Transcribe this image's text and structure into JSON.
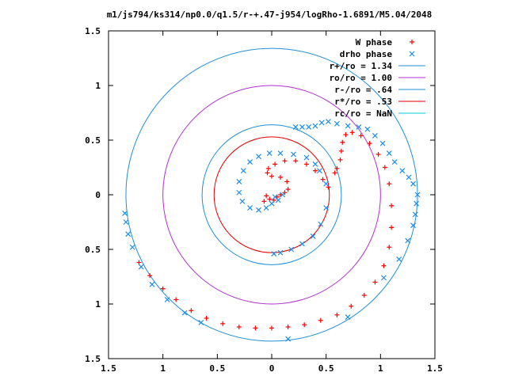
{
  "chart_data": {
    "type": "scatter",
    "title": "m1/js794/ks314/np0.0/q1.5/r-+.47-j954/logRho-1.6891/M5.04/2048",
    "xlim": [
      -1.5,
      1.5
    ],
    "ylim": [
      -1.5,
      1.5
    ],
    "x_ticks": [
      -1.5,
      -1,
      -0.5,
      0,
      0.5,
      1,
      1.5
    ],
    "x_tick_labels": [
      "1.5",
      "1",
      "0.5",
      "0",
      "0.5",
      "1",
      "1.5"
    ],
    "y_ticks": [
      1.5,
      1,
      0.5,
      0,
      -0.5,
      -1,
      -1.5
    ],
    "y_tick_labels": [
      "1.5",
      "1",
      "0.5",
      "0",
      "0.5",
      "1",
      "1.5"
    ],
    "grid": false,
    "legend_position": "top-right",
    "colors": {
      "w_phase": "#ff0000",
      "drho_phase": "#1e8ee6",
      "r_plus": "#1f8fd6",
      "ro": "#b030d0",
      "r_minus": "#1f8fd6",
      "r_star": "#e00000",
      "rc": "#00c8d8"
    },
    "circles": [
      {
        "label": "r+/ro = 1.34",
        "radius": 1.34,
        "color_key": "r_plus"
      },
      {
        "label": "ro/ro = 1.00",
        "radius": 1.0,
        "color_key": "ro"
      },
      {
        "label": "r-/ro = .64",
        "radius": 0.64,
        "color_key": "r_minus"
      },
      {
        "label": "r*/ro = .53",
        "radius": 0.53,
        "color_key": "r_star"
      },
      {
        "label": "rc/ro = NaN",
        "radius": null,
        "color_key": "rc"
      }
    ],
    "series": [
      {
        "name": "W phase",
        "marker": "plus",
        "color_key": "w_phase",
        "points": [
          [
            -1.22,
            -0.62
          ],
          [
            -1.12,
            -0.74
          ],
          [
            -1.0,
            -0.86
          ],
          [
            -0.88,
            -0.96
          ],
          [
            -0.74,
            -1.06
          ],
          [
            -0.6,
            -1.13
          ],
          [
            -0.45,
            -1.18
          ],
          [
            -0.3,
            -1.21
          ],
          [
            -0.15,
            -1.22
          ],
          [
            0.0,
            -1.22
          ],
          [
            0.15,
            -1.21
          ],
          [
            0.3,
            -1.19
          ],
          [
            0.45,
            -1.15
          ],
          [
            0.6,
            -1.1
          ],
          [
            0.73,
            -1.02
          ],
          [
            0.85,
            -0.92
          ],
          [
            0.95,
            -0.8
          ],
          [
            1.03,
            -0.65
          ],
          [
            1.08,
            -0.48
          ],
          [
            1.1,
            -0.3
          ],
          [
            1.1,
            -0.1
          ],
          [
            1.08,
            0.1
          ],
          [
            1.04,
            0.25
          ],
          [
            0.98,
            0.37
          ],
          [
            0.9,
            0.47
          ],
          [
            0.82,
            0.54
          ],
          [
            0.74,
            0.57
          ],
          [
            0.68,
            0.55
          ],
          [
            0.65,
            0.48
          ],
          [
            0.64,
            0.4
          ],
          [
            0.63,
            0.32
          ],
          [
            0.6,
            0.24
          ],
          [
            0.58,
            0.2
          ],
          [
            0.52,
            0.07
          ],
          [
            0.47,
            0.14
          ],
          [
            0.4,
            0.22
          ],
          [
            0.32,
            0.28
          ],
          [
            0.22,
            0.31
          ],
          [
            0.12,
            0.31
          ],
          [
            0.03,
            0.28
          ],
          [
            -0.03,
            0.24
          ],
          [
            -0.04,
            0.2
          ],
          [
            0.0,
            0.17
          ],
          [
            0.08,
            0.16
          ],
          [
            0.14,
            0.12
          ],
          [
            0.15,
            0.05
          ],
          [
            0.12,
            0.02
          ],
          [
            0.08,
            0.0
          ],
          [
            0.05,
            -0.02
          ],
          [
            0.02,
            -0.05
          ],
          [
            -0.02,
            -0.04
          ],
          [
            -0.05,
            -0.01
          ],
          [
            -0.07,
            -0.06
          ]
        ]
      },
      {
        "name": "drho phase",
        "marker": "cross",
        "color_key": "drho_phase",
        "points": [
          [
            -1.35,
            -0.17
          ],
          [
            -1.34,
            -0.25
          ],
          [
            -1.32,
            -0.36
          ],
          [
            -1.28,
            -0.48
          ],
          [
            -1.2,
            -0.66
          ],
          [
            -1.1,
            -0.82
          ],
          [
            -0.96,
            -0.96
          ],
          [
            -0.8,
            -1.08
          ],
          [
            -0.65,
            -1.17
          ],
          [
            0.15,
            -1.32
          ],
          [
            0.7,
            -1.12
          ],
          [
            1.03,
            -0.76
          ],
          [
            1.17,
            -0.59
          ],
          [
            1.25,
            -0.42
          ],
          [
            1.3,
            -0.28
          ],
          [
            1.32,
            -0.18
          ],
          [
            1.33,
            -0.08
          ],
          [
            1.34,
            0.0
          ],
          [
            1.3,
            0.1
          ],
          [
            1.26,
            0.16
          ],
          [
            1.2,
            0.22
          ],
          [
            1.13,
            0.3
          ],
          [
            1.08,
            0.38
          ],
          [
            1.02,
            0.47
          ],
          [
            0.95,
            0.54
          ],
          [
            0.88,
            0.6
          ],
          [
            0.8,
            0.62
          ],
          [
            0.7,
            0.63
          ],
          [
            0.6,
            0.65
          ],
          [
            0.52,
            0.67
          ],
          [
            0.46,
            0.66
          ],
          [
            0.4,
            0.63
          ],
          [
            0.34,
            0.62
          ],
          [
            0.28,
            0.62
          ],
          [
            0.22,
            0.62
          ],
          [
            0.5,
            0.1
          ],
          [
            0.44,
            0.22
          ],
          [
            0.4,
            0.28
          ],
          [
            0.32,
            0.34
          ],
          [
            0.2,
            0.37
          ],
          [
            0.08,
            0.38
          ],
          [
            -0.02,
            0.38
          ],
          [
            -0.12,
            0.35
          ],
          [
            -0.2,
            0.3
          ],
          [
            -0.26,
            0.22
          ],
          [
            -0.3,
            0.12
          ],
          [
            -0.3,
            0.02
          ],
          [
            -0.27,
            -0.06
          ],
          [
            -0.2,
            -0.12
          ],
          [
            -0.12,
            -0.14
          ],
          [
            -0.05,
            -0.12
          ],
          [
            0.0,
            -0.08
          ],
          [
            0.03,
            -0.02
          ],
          [
            0.06,
            -0.05
          ],
          [
            0.1,
            0.0
          ],
          [
            0.5,
            -0.12
          ],
          [
            0.45,
            -0.27
          ],
          [
            0.38,
            -0.38
          ],
          [
            0.28,
            -0.45
          ],
          [
            0.18,
            -0.5
          ],
          [
            0.08,
            -0.53
          ],
          [
            0.02,
            -0.54
          ]
        ]
      }
    ]
  }
}
